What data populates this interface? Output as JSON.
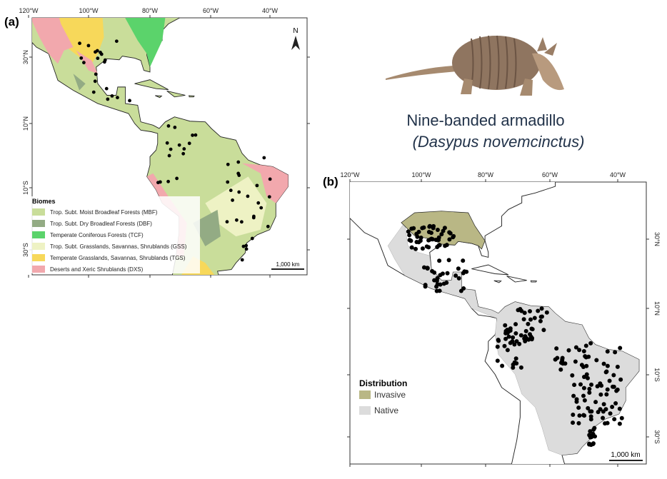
{
  "panel_a": {
    "label": "(a)",
    "lon_ticks": [
      "120°W",
      "100°W",
      "80°W",
      "60°W",
      "40°W"
    ],
    "lat_ticks": [
      "30°N",
      "10°N",
      "10°S",
      "30°S"
    ],
    "north": "N",
    "scale": "1,000 km",
    "legend": {
      "title": "Biomes",
      "items": [
        {
          "name": "Trop. Subt. Moist Broadleaf Forests (MBF)",
          "color": "#c9dd9a"
        },
        {
          "name": "Trop. Subt. Dry Broadleaf Forests (DBF)",
          "color": "#93ab84"
        },
        {
          "name": "Temperate Coniferous Forests (TCF)",
          "color": "#5bd36b"
        },
        {
          "name": "Trop. Subt. Grasslands, Savannas, Shrublands (GSS)",
          "color": "#eef2c4"
        },
        {
          "name": "Temperate Grasslands, Savannas, Shrublands (TGS)",
          "color": "#f7d85a"
        },
        {
          "name": "Deserts and Xeric Shrublands (DXS)",
          "color": "#f2a8ad"
        }
      ]
    }
  },
  "species": {
    "common": "Nine-banded armadillo",
    "scientific": "(Dasypus novemcinctus)"
  },
  "panel_b": {
    "label": "(b)",
    "lon_ticks": [
      "120°W",
      "100°W",
      "80°W",
      "60°W",
      "40°W"
    ],
    "lat_ticks": [
      "30°N",
      "10°N",
      "10°S",
      "30°S"
    ],
    "scale": "1,000 km",
    "legend": {
      "title": "Distribution",
      "items": [
        {
          "name": "Invasive",
          "color": "#b9b785"
        },
        {
          "name": "Native",
          "color": "#dcdcdc"
        }
      ]
    }
  }
}
